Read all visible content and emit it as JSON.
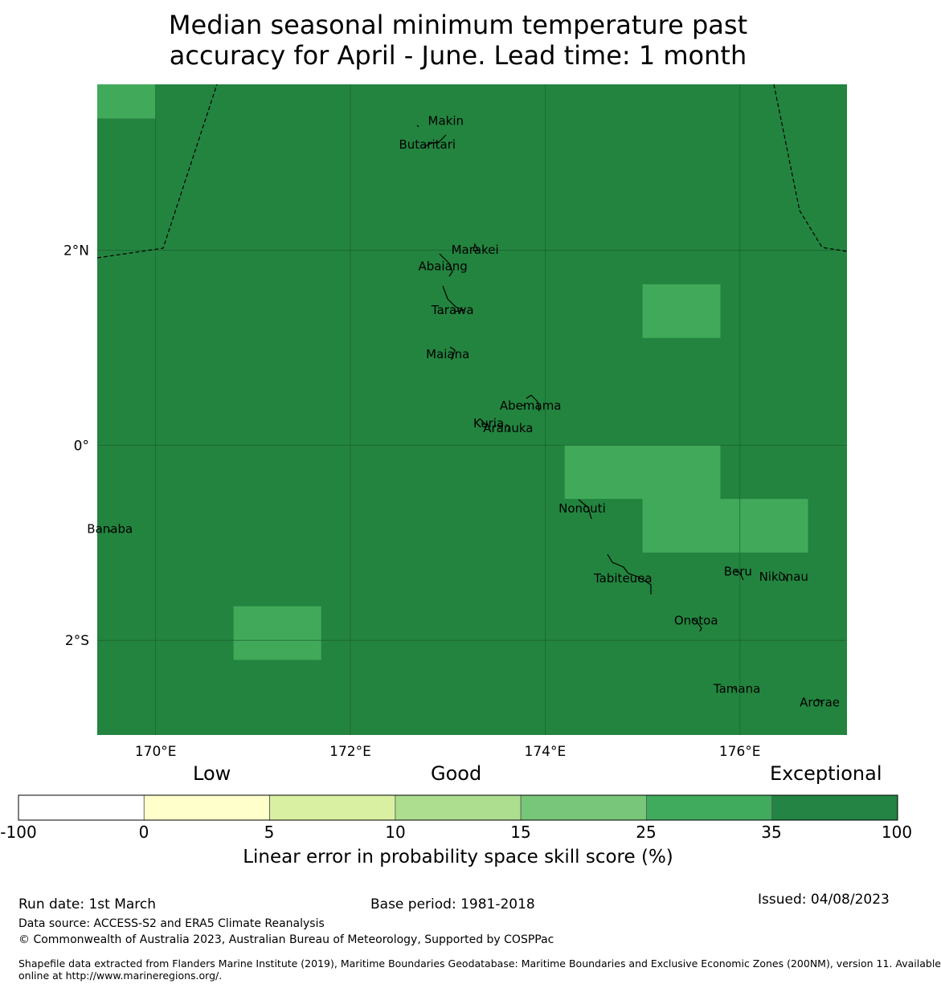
{
  "title": {
    "line1": "Median seasonal minimum temperature past",
    "line2": "accuracy for April - June. Lead time: 1 month"
  },
  "map": {
    "lon_range": [
      169.4,
      177.1
    ],
    "lat_range": [
      -2.97,
      3.7
    ],
    "background_color": "#23843f",
    "cell_color": "#41aa5a",
    "upper_left_cell_color": "#41aa5a",
    "skill_cells": [
      {
        "lon": [
          169.4,
          170.0
        ],
        "lat": [
          3.35,
          3.7
        ]
      },
      {
        "lon": [
          175.0,
          175.8
        ],
        "lat": [
          1.1,
          1.65
        ]
      },
      {
        "lon": [
          174.2,
          175.8
        ],
        "lat": [
          -0.55,
          0.0
        ]
      },
      {
        "lon": [
          175.0,
          176.7
        ],
        "lat": [
          -1.1,
          -0.55
        ]
      },
      {
        "lon": [
          170.8,
          171.7
        ],
        "lat": [
          -2.2,
          -1.65
        ]
      }
    ],
    "x_ticks": [
      {
        "value": 170,
        "label": "170°E"
      },
      {
        "value": 172,
        "label": "172°E"
      },
      {
        "value": 174,
        "label": "174°E"
      },
      {
        "value": 176,
        "label": "176°E"
      }
    ],
    "y_ticks": [
      {
        "value": 2,
        "label": "2°N"
      },
      {
        "value": 0,
        "label": "0°"
      },
      {
        "value": -2,
        "label": "2°S"
      }
    ],
    "islands": [
      {
        "name": "Makin",
        "lon": 172.98,
        "lat": 3.32
      },
      {
        "name": "Butaritari",
        "lon": 172.79,
        "lat": 3.08
      },
      {
        "name": "Marakei",
        "lon": 173.28,
        "lat": 2.0
      },
      {
        "name": "Abaiang",
        "lon": 172.95,
        "lat": 1.83
      },
      {
        "name": "Tarawa",
        "lon": 173.05,
        "lat": 1.38
      },
      {
        "name": "Maiana",
        "lon": 173.0,
        "lat": 0.93
      },
      {
        "name": "Abemama",
        "lon": 173.85,
        "lat": 0.4
      },
      {
        "name": "Kuria",
        "lon": 173.42,
        "lat": 0.22
      },
      {
        "name": "Aranuka",
        "lon": 173.62,
        "lat": 0.17
      },
      {
        "name": "Nonouti",
        "lon": 174.38,
        "lat": -0.65
      },
      {
        "name": "Banaba",
        "lon": 169.53,
        "lat": -0.86
      },
      {
        "name": "Beru",
        "lon": 175.98,
        "lat": -1.3
      },
      {
        "name": "Tabiteuea",
        "lon": 174.8,
        "lat": -1.37
      },
      {
        "name": "Nikunau",
        "lon": 176.45,
        "lat": -1.35
      },
      {
        "name": "Onotoa",
        "lon": 175.55,
        "lat": -1.8
      },
      {
        "name": "Tamana",
        "lon": 175.97,
        "lat": -2.5
      },
      {
        "name": "Arorae",
        "lon": 176.82,
        "lat": -2.64
      }
    ]
  },
  "colorbar": {
    "categories": [
      "Low",
      "Good",
      "Exceptional"
    ],
    "bins": [
      {
        "from": "-100",
        "to": "0",
        "color": "#ffffff"
      },
      {
        "from": "0",
        "to": "5",
        "color": "#ffffcc"
      },
      {
        "from": "5",
        "to": "10",
        "color": "#d9f0a3"
      },
      {
        "from": "10",
        "to": "15",
        "color": "#addd8e"
      },
      {
        "from": "15",
        "to": "25",
        "color": "#78c679"
      },
      {
        "from": "25",
        "to": "35",
        "color": "#41ab5d"
      },
      {
        "from": "35",
        "to": "100",
        "color": "#238443"
      }
    ],
    "tick_labels": [
      "-100",
      "0",
      "5",
      "10",
      "15",
      "25",
      "35",
      "100"
    ],
    "title": "Linear error in probability space skill score (%)"
  },
  "footer": {
    "run_date": "Run date: 1st March",
    "base_period": "Base period: 1981-2018",
    "issued": "Issued: 04/08/2023",
    "data_source": "Data source: ACCESS-S2 and ERA5 Climate Reanalysis",
    "copyright": "© Commonwealth of Australia 2023, Australian Bureau of Meteorology, Supported by COSPPac",
    "shapefile_line1": "Shapefile data extracted from Flanders Marine Institute (2019), Maritime Boundaries Geodatabase: Maritime Boundaries and Exclusive Economic Zones (200NM), version 11. Available",
    "shapefile_line2": "online at http://www.marineregions.org/."
  }
}
